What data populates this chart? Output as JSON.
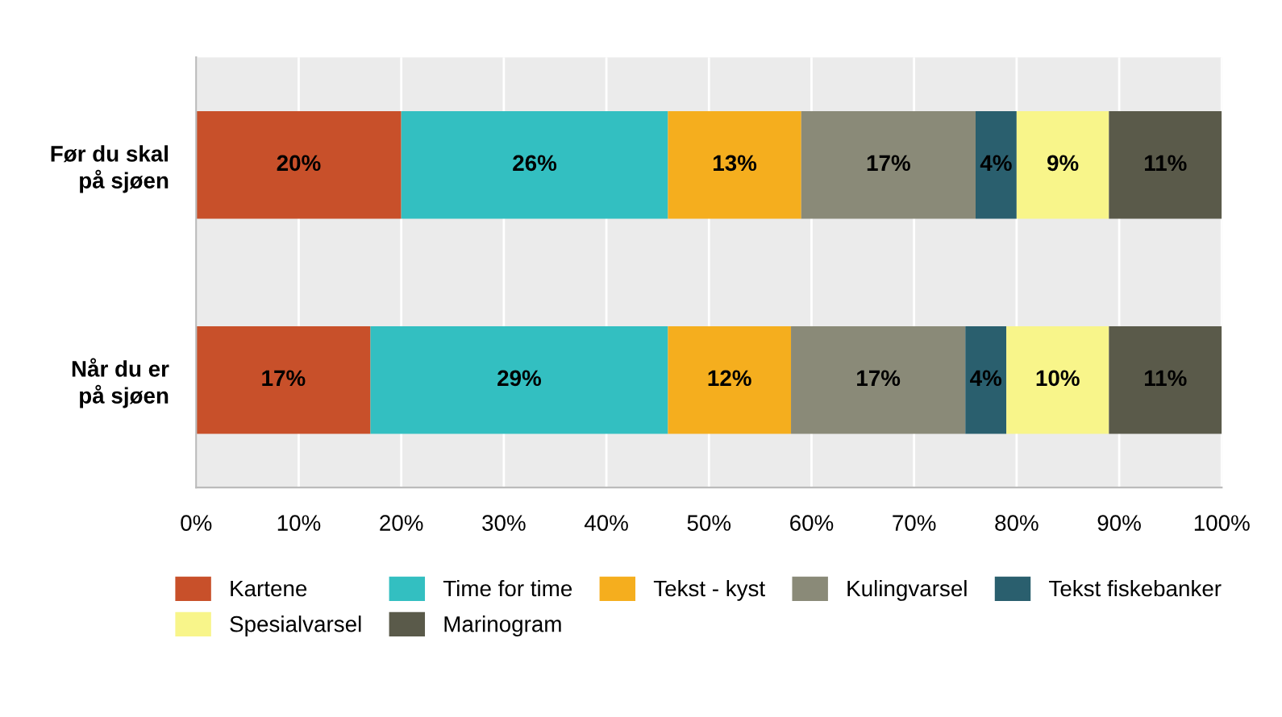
{
  "chart_data": {
    "type": "bar",
    "orientation": "horizontal",
    "stacked": true,
    "categories": [
      "Før du skal på sjøen",
      "Når du er på sjøen"
    ],
    "series": [
      {
        "name": "Kartene",
        "color": "#c8502a",
        "values": [
          20,
          17
        ],
        "value_labels": [
          "20%",
          "17%"
        ]
      },
      {
        "name": "Time for time",
        "color": "#33bfc1",
        "values": [
          26,
          29
        ],
        "value_labels": [
          "26%",
          "29%"
        ]
      },
      {
        "name": "Tekst - kyst",
        "color": "#f5ae1e",
        "values": [
          13,
          12
        ],
        "value_labels": [
          "13%",
          "12%"
        ]
      },
      {
        "name": "Kulingvarsel",
        "color": "#8a8a78",
        "values": [
          17,
          17
        ],
        "value_labels": [
          "17%",
          "17%"
        ]
      },
      {
        "name": "Tekst fiskebanker",
        "color": "#2a5f6e",
        "values": [
          4,
          4
        ],
        "value_labels": [
          "4%",
          "4%"
        ]
      },
      {
        "name": "Spesialvarsel",
        "color": "#f8f58a",
        "values": [
          9,
          10
        ],
        "value_labels": [
          "9%",
          "10%"
        ]
      },
      {
        "name": "Marinogram",
        "color": "#5a5a4a",
        "values": [
          11,
          11
        ],
        "value_labels": [
          "11%",
          "11%"
        ]
      }
    ],
    "xlim": [
      0,
      100
    ],
    "xticks": [
      {
        "value": 0,
        "label": "0%"
      },
      {
        "value": 10,
        "label": "10%"
      },
      {
        "value": 20,
        "label": "20%"
      },
      {
        "value": 30,
        "label": "30%"
      },
      {
        "value": 40,
        "label": "40%"
      },
      {
        "value": 50,
        "label": "50%"
      },
      {
        "value": 60,
        "label": "60%"
      },
      {
        "value": 70,
        "label": "70%"
      },
      {
        "value": 80,
        "label": "80%"
      },
      {
        "value": 90,
        "label": "90%"
      },
      {
        "value": 100,
        "label": "100%"
      }
    ],
    "grid": "x",
    "legend": "bottom"
  }
}
